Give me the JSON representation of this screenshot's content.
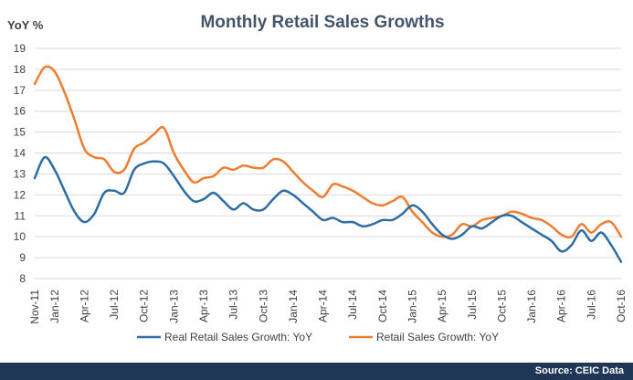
{
  "chart_data": {
    "type": "line",
    "title": "Monthly Retail Sales Growths",
    "ylabel": "YoY %",
    "xlabel": "",
    "ylim": [
      8,
      19
    ],
    "yticks": [
      8,
      9,
      10,
      11,
      12,
      13,
      14,
      15,
      16,
      17,
      18,
      19
    ],
    "xtick_labels": [
      "Nov-11",
      "Jan-12",
      "Apr-12",
      "Jul-12",
      "Oct-12",
      "Jan-13",
      "Apr-13",
      "Jul-13",
      "Oct-13",
      "Jan-14",
      "Apr-14",
      "Jul-14",
      "Oct-14",
      "Jan-15",
      "Apr-15",
      "Jul-15",
      "Oct-15",
      "Jan-16",
      "Apr-16",
      "Jul-16",
      "Oct-16"
    ],
    "grid": true,
    "legend_position": "bottom",
    "x": [
      "Nov-11",
      "Dec-11",
      "Jan-12",
      "Feb-12",
      "Mar-12",
      "Apr-12",
      "May-12",
      "Jun-12",
      "Jul-12",
      "Aug-12",
      "Sep-12",
      "Oct-12",
      "Nov-12",
      "Dec-12",
      "Jan-13",
      "Feb-13",
      "Mar-13",
      "Apr-13",
      "May-13",
      "Jun-13",
      "Jul-13",
      "Aug-13",
      "Sep-13",
      "Oct-13",
      "Nov-13",
      "Dec-13",
      "Jan-14",
      "Feb-14",
      "Mar-14",
      "Apr-14",
      "May-14",
      "Jun-14",
      "Jul-14",
      "Aug-14",
      "Sep-14",
      "Oct-14",
      "Nov-14",
      "Dec-14",
      "Jan-15",
      "Feb-15",
      "Mar-15",
      "Apr-15",
      "May-15",
      "Jun-15",
      "Jul-15",
      "Aug-15",
      "Sep-15",
      "Oct-15",
      "Nov-15",
      "Dec-15",
      "Jan-16",
      "Feb-16",
      "Mar-16",
      "Apr-16",
      "May-16",
      "Jun-16",
      "Jul-16",
      "Aug-16",
      "Sep-16",
      "Oct-16"
    ],
    "series": [
      {
        "name": "Real Retail Sales Growth: YoY",
        "color": "#2e6da4",
        "values": [
          12.8,
          13.8,
          13.2,
          12.2,
          11.2,
          10.7,
          11.1,
          12.1,
          12.2,
          12.1,
          13.2,
          13.5,
          13.6,
          13.5,
          12.9,
          12.2,
          11.7,
          11.8,
          12.1,
          11.7,
          11.3,
          11.6,
          11.3,
          11.3,
          11.8,
          12.2,
          12.0,
          11.6,
          11.2,
          10.8,
          10.9,
          10.7,
          10.7,
          10.5,
          10.6,
          10.8,
          10.8,
          11.1,
          11.5,
          11.2,
          10.6,
          10.1,
          9.9,
          10.1,
          10.5,
          10.4,
          10.7,
          11.0,
          11.0,
          10.7,
          10.4,
          10.1,
          9.8,
          9.3,
          9.6,
          10.3,
          9.8,
          10.2,
          9.6,
          8.8
        ]
      },
      {
        "name": "Retail Sales Growth: YoY",
        "color": "#ed7d31",
        "values": [
          17.3,
          18.1,
          17.9,
          16.9,
          15.6,
          14.2,
          13.8,
          13.7,
          13.1,
          13.2,
          14.2,
          14.5,
          14.9,
          15.2,
          14.0,
          13.2,
          12.6,
          12.8,
          12.9,
          13.3,
          13.2,
          13.4,
          13.3,
          13.3,
          13.7,
          13.6,
          13.1,
          12.6,
          12.2,
          11.9,
          12.5,
          12.4,
          12.2,
          11.9,
          11.6,
          11.5,
          11.7,
          11.9,
          11.2,
          10.7,
          10.2,
          10.0,
          10.1,
          10.6,
          10.5,
          10.8,
          10.9,
          11.0,
          11.2,
          11.1,
          10.9,
          10.8,
          10.5,
          10.1,
          10.0,
          10.6,
          10.2,
          10.6,
          10.7,
          10.0
        ]
      }
    ],
    "source": "Source: CEIC Data"
  }
}
